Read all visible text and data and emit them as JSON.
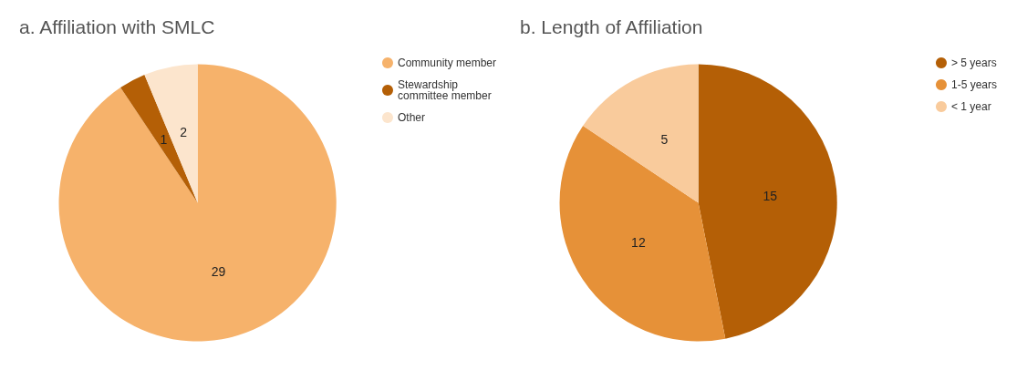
{
  "chart_data": [
    {
      "type": "pie",
      "title": "a. Affiliation with SMLC",
      "categories": [
        "Community member",
        "Stewardship\ncommittee member",
        "Other"
      ],
      "values": [
        29,
        1,
        2
      ],
      "colors": [
        "#f6b26b",
        "#b45f06",
        "#fce5cd"
      ],
      "data_labels": true,
      "legend": "right"
    },
    {
      "type": "pie",
      "title": "b. Length of Affiliation",
      "categories": [
        "> 5 years",
        "1-5 years",
        "< 1 year"
      ],
      "values": [
        15,
        12,
        5
      ],
      "colors": [
        "#b45f06",
        "#e69138",
        "#f9cb9c"
      ],
      "data_labels": true,
      "legend": "right"
    }
  ]
}
